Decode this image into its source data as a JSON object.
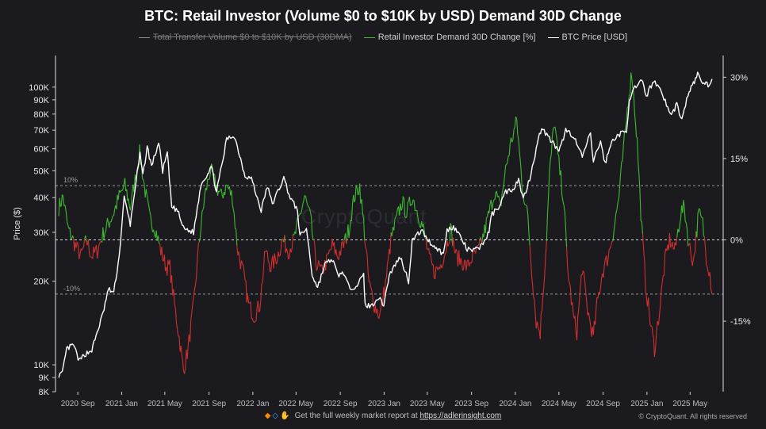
{
  "chart_data": {
    "type": "line",
    "title": "BTC: Retail Investor (Volume $0 to $10K by USD) Demand 30D Change",
    "watermark": "CryptoQuant",
    "footer": {
      "text": "Get the full weekly market report at",
      "link": "https://adlerinsight.com",
      "copyright": "© CryptoQuant. All rights reserved"
    },
    "legend": [
      {
        "name": "Total Transfer Volume $0 to $10K by USD (30DMA)",
        "color": "#8a8a8a",
        "hidden": true
      },
      {
        "name": "Retail Investor Demand 30D Change [%]",
        "color": "#3dbb2f",
        "hidden": false
      },
      {
        "name": "BTC Price [USD]",
        "color": "#ffffff",
        "hidden": false
      }
    ],
    "x_ticks": [
      "2020 Sep",
      "2021 Jan",
      "2021 May",
      "2021 Sep",
      "2022 Jan",
      "2022 May",
      "2022 Sep",
      "2023 Jan",
      "2023 May",
      "2023 Sep",
      "2024 Jan",
      "2024 May",
      "2024 Sep",
      "2025 Jan",
      "2025 May"
    ],
    "y_left": {
      "label": "Price ($)",
      "scale": "log",
      "range": [
        8000,
        130000
      ],
      "ticks": [
        {
          "v": 8000,
          "t": "8K"
        },
        {
          "v": 9000,
          "t": "9K"
        },
        {
          "v": 10000,
          "t": "10K"
        },
        {
          "v": 20000,
          "t": "20K"
        },
        {
          "v": 30000,
          "t": "30K"
        },
        {
          "v": 40000,
          "t": "40K"
        },
        {
          "v": 50000,
          "t": "50K"
        },
        {
          "v": 60000,
          "t": "60K"
        },
        {
          "v": 70000,
          "t": "70K"
        },
        {
          "v": 80000,
          "t": "80K"
        },
        {
          "v": 90000,
          "t": "90K"
        },
        {
          "v": 100000,
          "t": "100K"
        }
      ]
    },
    "y_right": {
      "range": [
        -28,
        34
      ],
      "ticks": [
        {
          "v": 30,
          "t": "30%"
        },
        {
          "v": 15,
          "t": "15%"
        },
        {
          "v": 0,
          "t": "0%"
        },
        {
          "v": -15,
          "t": "-15%"
        }
      ]
    },
    "reference_lines": [
      {
        "value": 10,
        "label": "10%"
      },
      {
        "value": 0,
        "label": ""
      },
      {
        "value": -10,
        "label": "-10%"
      }
    ],
    "series": [
      {
        "name": "BTC Price [USD]",
        "color": "#ffffff",
        "axis": "left",
        "points": [
          [
            "2020-07-10",
            9200
          ],
          [
            "2020-07-20",
            9300
          ],
          [
            "2020-08-01",
            11400
          ],
          [
            "2020-08-20",
            11800
          ],
          [
            "2020-09-05",
            10300
          ],
          [
            "2020-09-20",
            10900
          ],
          [
            "2020-10-10",
            11300
          ],
          [
            "2020-10-25",
            13100
          ],
          [
            "2020-11-10",
            15300
          ],
          [
            "2020-11-25",
            18700
          ],
          [
            "2020-12-10",
            18200
          ],
          [
            "2020-12-25",
            24500
          ],
          [
            "2021-01-08",
            40000
          ],
          [
            "2021-01-25",
            32000
          ],
          [
            "2021-02-10",
            46000
          ],
          [
            "2021-02-21",
            57000
          ],
          [
            "2021-03-01",
            48000
          ],
          [
            "2021-03-13",
            61000
          ],
          [
            "2021-03-25",
            52000
          ],
          [
            "2021-04-14",
            63000
          ],
          [
            "2021-04-25",
            50000
          ],
          [
            "2021-05-08",
            58000
          ],
          [
            "2021-05-20",
            37000
          ],
          [
            "2021-06-05",
            36000
          ],
          [
            "2021-06-22",
            31000
          ],
          [
            "2021-07-20",
            30000
          ],
          [
            "2021-08-10",
            45000
          ],
          [
            "2021-08-25",
            48000
          ],
          [
            "2021-09-07",
            52000
          ],
          [
            "2021-09-22",
            42000
          ],
          [
            "2021-10-10",
            55000
          ],
          [
            "2021-10-20",
            65000
          ],
          [
            "2021-11-10",
            67000
          ],
          [
            "2021-11-25",
            57000
          ],
          [
            "2021-12-10",
            48000
          ],
          [
            "2021-12-28",
            47000
          ],
          [
            "2022-01-10",
            41000
          ],
          [
            "2022-01-24",
            36000
          ],
          [
            "2022-02-10",
            44000
          ],
          [
            "2022-02-24",
            38000
          ],
          [
            "2022-03-28",
            47000
          ],
          [
            "2022-04-15",
            40000
          ],
          [
            "2022-05-05",
            36000
          ],
          [
            "2022-05-12",
            29000
          ],
          [
            "2022-05-30",
            31000
          ],
          [
            "2022-06-15",
            21000
          ],
          [
            "2022-06-30",
            19000
          ],
          [
            "2022-07-20",
            23000
          ],
          [
            "2022-08-10",
            24000
          ],
          [
            "2022-08-25",
            21000
          ],
          [
            "2022-09-10",
            21500
          ],
          [
            "2022-09-25",
            19000
          ],
          [
            "2022-10-15",
            19200
          ],
          [
            "2022-11-05",
            21000
          ],
          [
            "2022-11-09",
            16500
          ],
          [
            "2022-11-25",
            16200
          ],
          [
            "2022-12-15",
            17500
          ],
          [
            "2022-12-31",
            16500
          ],
          [
            "2023-01-15",
            21000
          ],
          [
            "2023-02-01",
            23000
          ],
          [
            "2023-02-15",
            24500
          ],
          [
            "2023-03-10",
            20000
          ],
          [
            "2023-03-20",
            28000
          ],
          [
            "2023-04-14",
            30500
          ],
          [
            "2023-05-10",
            27500
          ],
          [
            "2023-06-15",
            25000
          ],
          [
            "2023-06-25",
            30500
          ],
          [
            "2023-07-13",
            31500
          ],
          [
            "2023-08-01",
            29000
          ],
          [
            "2023-08-20",
            26000
          ],
          [
            "2023-09-10",
            25800
          ],
          [
            "2023-09-30",
            27000
          ],
          [
            "2023-10-20",
            30000
          ],
          [
            "2023-10-25",
            34500
          ],
          [
            "2023-11-15",
            37000
          ],
          [
            "2023-12-05",
            42000
          ],
          [
            "2023-12-25",
            43000
          ],
          [
            "2024-01-10",
            46500
          ],
          [
            "2024-01-23",
            39500
          ],
          [
            "2024-02-10",
            47000
          ],
          [
            "2024-02-28",
            60000
          ],
          [
            "2024-03-14",
            72000
          ],
          [
            "2024-04-01",
            66000
          ],
          [
            "2024-04-15",
            63000
          ],
          [
            "2024-05-01",
            58000
          ],
          [
            "2024-05-20",
            70000
          ],
          [
            "2024-06-10",
            67000
          ],
          [
            "2024-07-05",
            56000
          ],
          [
            "2024-07-28",
            68000
          ],
          [
            "2024-08-05",
            54000
          ],
          [
            "2024-08-25",
            64000
          ],
          [
            "2024-09-06",
            53000
          ],
          [
            "2024-09-28",
            65000
          ],
          [
            "2024-10-20",
            68000
          ],
          [
            "2024-11-05",
            69000
          ],
          [
            "2024-11-13",
            90000
          ],
          [
            "2024-11-22",
            98000
          ],
          [
            "2024-12-05",
            100000
          ],
          [
            "2024-12-17",
            106000
          ],
          [
            "2024-12-30",
            93000
          ],
          [
            "2025-01-20",
            106000
          ],
          [
            "2025-02-10",
            97000
          ],
          [
            "2025-02-28",
            84000
          ],
          [
            "2025-03-10",
            79000
          ],
          [
            "2025-03-25",
            87000
          ],
          [
            "2025-04-08",
            76000
          ],
          [
            "2025-04-25",
            94000
          ],
          [
            "2025-05-10",
            103000
          ],
          [
            "2025-05-22",
            111000
          ],
          [
            "2025-06-05",
            104000
          ],
          [
            "2025-06-20",
            102000
          ],
          [
            "2025-07-01",
            107000
          ]
        ]
      },
      {
        "name": "Retail Investor Demand 30D Change [%]",
        "color_positive": "#3dbb2f",
        "color_negative": "#d32f2f",
        "axis": "right",
        "points": [
          [
            "2020-07-10",
            6
          ],
          [
            "2020-07-22",
            8
          ],
          [
            "2020-08-05",
            2
          ],
          [
            "2020-08-25",
            -1
          ],
          [
            "2020-09-10",
            -3
          ],
          [
            "2020-09-25",
            0
          ],
          [
            "2020-10-10",
            -3
          ],
          [
            "2020-10-25",
            -2
          ],
          [
            "2020-11-10",
            1
          ],
          [
            "2020-11-25",
            3
          ],
          [
            "2020-12-10",
            5
          ],
          [
            "2020-12-25",
            8
          ],
          [
            "2021-01-10",
            10
          ],
          [
            "2021-01-25",
            6
          ],
          [
            "2021-02-10",
            12
          ],
          [
            "2021-02-20",
            16
          ],
          [
            "2021-03-05",
            10
          ],
          [
            "2021-03-20",
            4
          ],
          [
            "2021-04-05",
            2
          ],
          [
            "2021-04-20",
            -2
          ],
          [
            "2021-05-05",
            -5
          ],
          [
            "2021-05-15",
            -5
          ],
          [
            "2021-05-28",
            -12
          ],
          [
            "2021-06-10",
            -18
          ],
          [
            "2021-06-22",
            -24
          ],
          [
            "2021-07-05",
            -20
          ],
          [
            "2021-07-20",
            -12
          ],
          [
            "2021-08-05",
            0
          ],
          [
            "2021-08-20",
            8
          ],
          [
            "2021-09-05",
            13
          ],
          [
            "2021-09-20",
            10
          ],
          [
            "2021-10-05",
            8
          ],
          [
            "2021-10-20",
            10
          ],
          [
            "2021-11-05",
            8
          ],
          [
            "2021-11-20",
            -2
          ],
          [
            "2021-12-05",
            -6
          ],
          [
            "2021-12-20",
            -12
          ],
          [
            "2022-01-05",
            -14
          ],
          [
            "2022-01-20",
            -12
          ],
          [
            "2022-02-05",
            -2
          ],
          [
            "2022-02-20",
            -5
          ],
          [
            "2022-03-10",
            -3
          ],
          [
            "2022-03-25",
            0
          ],
          [
            "2022-04-10",
            -2
          ],
          [
            "2022-04-25",
            0
          ],
          [
            "2022-05-10",
            4
          ],
          [
            "2022-05-25",
            8
          ],
          [
            "2022-06-10",
            4
          ],
          [
            "2022-06-25",
            -4
          ],
          [
            "2022-07-10",
            -6
          ],
          [
            "2022-07-25",
            -4
          ],
          [
            "2022-08-10",
            -1
          ],
          [
            "2022-08-25",
            -3
          ],
          [
            "2022-09-10",
            -1
          ],
          [
            "2022-09-25",
            2
          ],
          [
            "2022-10-10",
            8
          ],
          [
            "2022-10-25",
            10
          ],
          [
            "2022-11-05",
            3
          ],
          [
            "2022-11-20",
            -8
          ],
          [
            "2022-12-05",
            -12
          ],
          [
            "2022-12-20",
            -14
          ],
          [
            "2023-01-05",
            -8
          ],
          [
            "2023-01-20",
            0
          ],
          [
            "2023-02-05",
            4
          ],
          [
            "2023-02-20",
            7
          ],
          [
            "2023-03-05",
            5
          ],
          [
            "2023-03-20",
            8
          ],
          [
            "2023-04-05",
            5
          ],
          [
            "2023-04-20",
            2
          ],
          [
            "2023-05-05",
            -3
          ],
          [
            "2023-05-20",
            -6
          ],
          [
            "2023-06-05",
            -5
          ],
          [
            "2023-06-20",
            -2
          ],
          [
            "2023-07-05",
            2
          ],
          [
            "2023-07-20",
            -3
          ],
          [
            "2023-08-05",
            -4
          ],
          [
            "2023-08-20",
            -5
          ],
          [
            "2023-09-05",
            -3
          ],
          [
            "2023-09-20",
            -2
          ],
          [
            "2023-10-05",
            1
          ],
          [
            "2023-10-20",
            5
          ],
          [
            "2023-11-05",
            9
          ],
          [
            "2023-11-20",
            6
          ],
          [
            "2023-12-05",
            13
          ],
          [
            "2023-12-20",
            18
          ],
          [
            "2024-01-05",
            22
          ],
          [
            "2024-01-20",
            10
          ],
          [
            "2024-02-05",
            4
          ],
          [
            "2024-02-15",
            -5
          ],
          [
            "2024-02-28",
            -15
          ],
          [
            "2024-03-10",
            -17
          ],
          [
            "2024-03-25",
            -3
          ],
          [
            "2024-04-05",
            12
          ],
          [
            "2024-04-18",
            22
          ],
          [
            "2024-05-01",
            14
          ],
          [
            "2024-05-15",
            7
          ],
          [
            "2024-05-25",
            -5
          ],
          [
            "2024-06-10",
            -14
          ],
          [
            "2024-06-20",
            -17
          ],
          [
            "2024-07-05",
            -5
          ],
          [
            "2024-07-20",
            -13
          ],
          [
            "2024-08-05",
            -18
          ],
          [
            "2024-08-15",
            -12
          ],
          [
            "2024-08-30",
            -6
          ],
          [
            "2024-09-15",
            -3
          ],
          [
            "2024-10-01",
            2
          ],
          [
            "2024-10-15",
            8
          ],
          [
            "2024-10-30",
            18
          ],
          [
            "2024-11-10",
            26
          ],
          [
            "2024-11-20",
            31
          ],
          [
            "2024-12-05",
            18
          ],
          [
            "2024-12-15",
            5
          ],
          [
            "2024-12-28",
            -8
          ],
          [
            "2025-01-10",
            -15
          ],
          [
            "2025-01-22",
            -20
          ],
          [
            "2025-02-05",
            -13
          ],
          [
            "2025-02-20",
            -4
          ],
          [
            "2025-03-05",
            0
          ],
          [
            "2025-03-20",
            -2
          ],
          [
            "2025-04-05",
            5
          ],
          [
            "2025-04-15",
            6
          ],
          [
            "2025-04-28",
            -1
          ],
          [
            "2025-05-10",
            -4
          ],
          [
            "2025-05-25",
            5
          ],
          [
            "2025-06-05",
            3
          ],
          [
            "2025-06-15",
            -3
          ],
          [
            "2025-06-25",
            -6
          ],
          [
            "2025-07-01",
            -10
          ]
        ]
      }
    ]
  }
}
